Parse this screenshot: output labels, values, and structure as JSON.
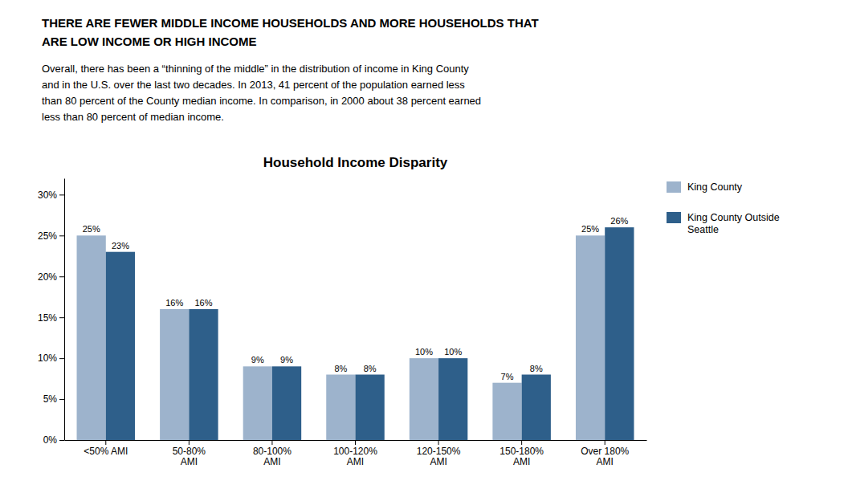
{
  "chart_data": {
    "type": "bar",
    "title": "Household Income Disparity",
    "annotations": [
      "THERE ARE FEWER MIDDLE INCOME HOUSEHOLDS AND MORE HOUSEHOLDS THAT",
      "ARE LOW INCOME OR HIGH INCOME",
      "Overall, there has been a “thinning of the middle” in the distribution of income in King County\nand in the U.S. over the last two decades. In 2013, 41 percent of the population earned less\nthan 80 percent of the County median income. In comparison, in 2000 about 38 percent earned\nless than 80 percent of median income."
    ],
    "categories": [
      "<50% AMI",
      "50-80%\nAMI",
      "80-100%\nAMI",
      "100-120%\nAMI",
      "120-150%\nAMI",
      "150-180%\nAMI",
      "Over 180%\nAMI"
    ],
    "series": [
      {
        "name": "King County",
        "color": "#9DB3CC",
        "values": [
          25,
          16,
          9,
          8,
          10,
          7,
          25
        ],
        "value_labels": [
          "25%",
          "16%",
          "9%",
          "8%",
          "10%",
          "7%",
          "25%"
        ]
      },
      {
        "name": "King County Outside\nSeattle",
        "color": "#2E5F8A",
        "values": [
          23,
          16,
          9,
          8,
          10,
          8,
          26
        ],
        "value_labels": [
          "23%",
          "16%",
          "9%",
          "8%",
          "10%",
          "8%",
          "26%"
        ]
      }
    ],
    "ylim": [
      0,
      32
    ],
    "yticks": [
      {
        "value": 0,
        "label": "0%"
      },
      {
        "value": 5,
        "label": "5%"
      },
      {
        "value": 10,
        "label": "10%"
      },
      {
        "value": 15,
        "label": "15%"
      },
      {
        "value": 20,
        "label": "20%"
      },
      {
        "value": 25,
        "label": "25%"
      },
      {
        "value": 30,
        "label": "30%"
      }
    ],
    "grid": false,
    "legend": "right",
    "data_labels": true
  }
}
